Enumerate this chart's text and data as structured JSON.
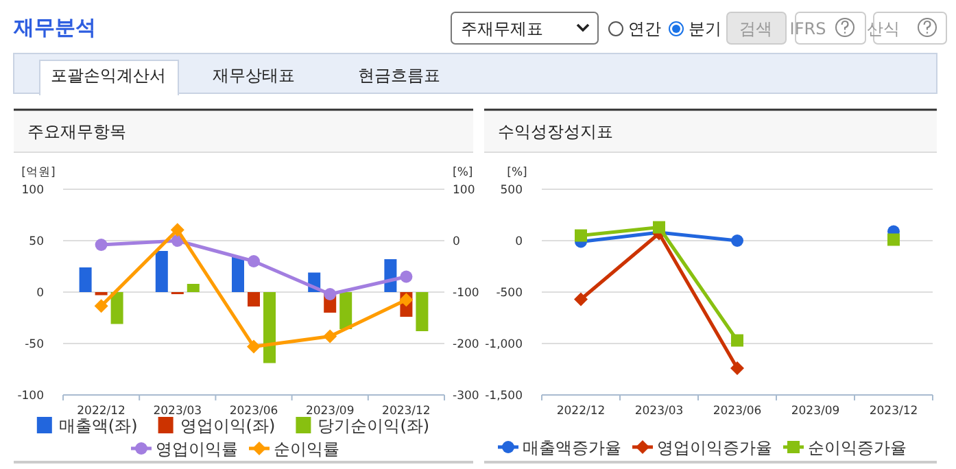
{
  "chart_data": [
    {
      "type": "other",
      "title": "재무분석",
      "annotations": [
        "주재무제표",
        "연간",
        "분기",
        "검색",
        "IFRS",
        "산식",
        "포괄손익계산서",
        "재무상태표",
        "현금흐름표"
      ]
    },
    {
      "type": "bar",
      "title": "주요재무항목",
      "ylabel": "[억원]",
      "y2label": "[%]",
      "categories": [
        "2022/12",
        "2023/03",
        "2023/06",
        "2023/09",
        "2023/12"
      ],
      "ylim": [
        -100,
        100
      ],
      "yticks": [
        -100,
        -50,
        0,
        50,
        100
      ],
      "y2lim": [
        -300,
        100
      ],
      "y2ticks": [
        -300,
        -200,
        -100,
        0,
        100
      ],
      "grid": "y",
      "legend": "bottom",
      "series": [
        {
          "name": "매출액(좌)",
          "type": "bar",
          "color": "#2266dd",
          "values": [
            24,
            40,
            34,
            19,
            32
          ]
        },
        {
          "name": "영업이익(좌)",
          "type": "bar",
          "color": "#cc3300",
          "values": [
            -3,
            -2,
            -14,
            -20,
            -24
          ]
        },
        {
          "name": "당기순이익(좌)",
          "type": "bar",
          "color": "#88c010",
          "values": [
            -31,
            8,
            -69,
            -36,
            -38
          ]
        },
        {
          "name": "영업이익률",
          "type": "line",
          "axis": "y2",
          "marker": "circle",
          "color": "#a27ee0",
          "values": [
            -8,
            0,
            -40,
            -104,
            -70
          ]
        },
        {
          "name": "순이익률",
          "type": "line",
          "axis": "y2",
          "marker": "diamond",
          "color": "#ff9c00",
          "values": [
            -127,
            21,
            -206,
            -186,
            -115
          ]
        }
      ]
    },
    {
      "type": "line",
      "title": "수익성장성지표",
      "ylabel": "[%]",
      "categories": [
        "2022/12",
        "2023/03",
        "2023/06",
        "2023/09",
        "2023/12"
      ],
      "ylim": [
        -1500,
        500
      ],
      "yticks": [
        {
          "value": -1500,
          "label": "-1,500"
        },
        {
          "value": -1000,
          "label": "-1,000"
        },
        -500,
        0,
        500
      ],
      "grid": "y",
      "legend": "bottom",
      "series": [
        {
          "name": "매출액증가율",
          "marker": "circle",
          "color": "#2266dd",
          "values": [
            -10,
            80,
            0,
            null,
            90
          ]
        },
        {
          "name": "영업이익증가율",
          "marker": "diamond",
          "color": "#cc3300",
          "values": [
            -570,
            70,
            -1240,
            null,
            null
          ]
        },
        {
          "name": "순이익증가율",
          "marker": "square",
          "color": "#88c010",
          "values": [
            50,
            130,
            -970,
            null,
            10
          ]
        }
      ]
    }
  ]
}
